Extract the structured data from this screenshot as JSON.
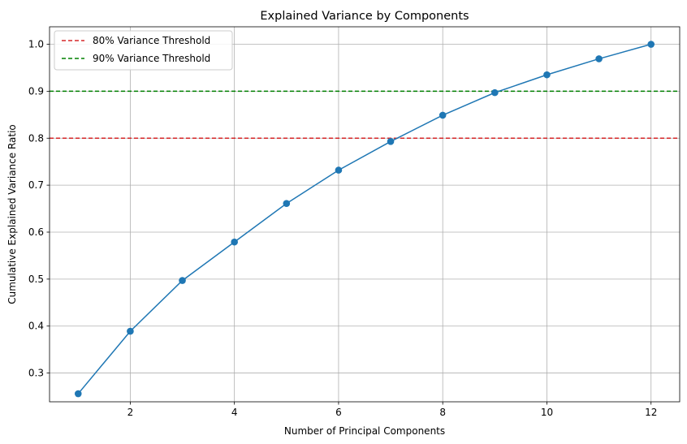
{
  "chart_data": {
    "type": "line",
    "title": "Explained Variance by Components",
    "xlabel": "Number of Principal Components",
    "ylabel": "Cumulative Explained Variance Ratio",
    "x": [
      1,
      2,
      3,
      4,
      5,
      6,
      7,
      8,
      9,
      10,
      11,
      12
    ],
    "series": [
      {
        "values": [
          0.256,
          0.389,
          0.497,
          0.579,
          0.661,
          0.732,
          0.793,
          0.849,
          0.897,
          0.935,
          0.969,
          1.0
        ],
        "color": "#1f77b4",
        "marker": "circle"
      }
    ],
    "thresholds": [
      {
        "label": "80% Variance Threshold",
        "value": 0.8,
        "color": "#d62728",
        "style": "dashed"
      },
      {
        "label": "90% Variance Threshold",
        "value": 0.9,
        "color": "#008000",
        "style": "dashed"
      }
    ],
    "xlim": [
      0.45,
      12.55
    ],
    "ylim": [
      0.2388,
      1.0372
    ],
    "xticks": [
      2,
      4,
      6,
      8,
      10,
      12
    ],
    "xtick_labels": [
      "2",
      "4",
      "6",
      "8",
      "10",
      "12"
    ],
    "yticks": [
      0.3,
      0.4,
      0.5,
      0.6,
      0.7,
      0.8,
      0.9,
      1.0
    ],
    "ytick_labels": [
      "0.3",
      "0.4",
      "0.5",
      "0.6",
      "0.7",
      "0.8",
      "0.9",
      "1.0"
    ],
    "grid": true,
    "legend_position": "top-left"
  }
}
